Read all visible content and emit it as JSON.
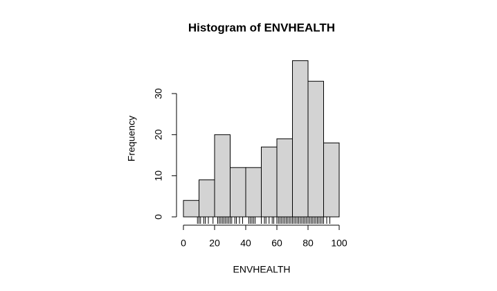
{
  "chart_data": {
    "type": "histogram",
    "title": "Histogram of ENVHEALTH",
    "x_label": "ENVHEALTH",
    "y_label": "Frequency",
    "bins": [
      0,
      10,
      20,
      30,
      40,
      50,
      60,
      70,
      80,
      90,
      100
    ],
    "values": [
      4,
      9,
      20,
      12,
      12,
      17,
      19,
      38,
      33,
      18
    ],
    "color": "#d3d3d3",
    "xlim": [
      0,
      100
    ],
    "xticks": [
      0,
      20,
      40,
      60,
      80,
      100
    ],
    "ylim": [
      0,
      38
    ],
    "yticks": [
      0,
      10,
      20,
      30
    ],
    "rug": [
      9,
      10,
      11,
      13,
      14,
      16,
      19,
      22,
      23,
      24,
      25,
      26,
      27,
      28,
      29,
      30,
      31,
      33,
      34,
      36,
      38,
      42,
      43,
      44,
      45,
      46,
      50,
      52,
      53,
      55,
      57,
      58,
      60,
      61,
      62,
      63,
      64,
      65,
      66,
      67,
      68,
      69,
      70,
      71,
      72,
      73,
      74,
      75,
      76,
      77,
      78,
      79,
      80,
      81,
      82,
      83,
      84,
      85,
      86,
      87,
      88,
      89,
      90,
      92,
      94
    ]
  }
}
